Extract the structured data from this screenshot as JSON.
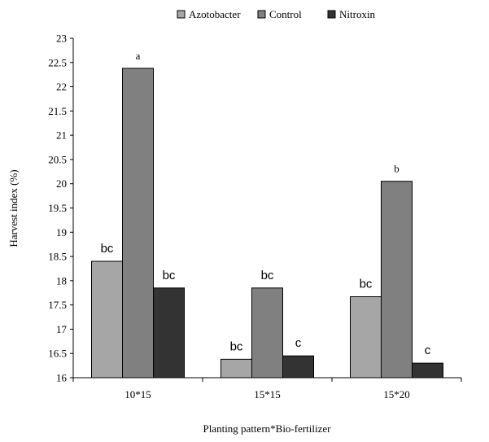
{
  "chart_data": {
    "type": "bar",
    "title": "",
    "xlabel": "Planting pattern*Bio-fertilizer",
    "ylabel": "Harvest index (%)",
    "ylim": [
      16,
      23
    ],
    "yticks": [
      "16",
      "16.5",
      "17",
      "17.5",
      "18",
      "18.5",
      "19",
      "19.5",
      "20",
      "20.5",
      "21",
      "21.5",
      "22",
      "22.5",
      "23"
    ],
    "categories": [
      "10*15",
      "15*15",
      "15*20"
    ],
    "legend_position": "top",
    "grid": false,
    "series": [
      {
        "name": "Azotobacter",
        "color": "#a6a6a6",
        "values": [
          18.4,
          16.38,
          17.67
        ],
        "labels": [
          "bc",
          "bc",
          "bc"
        ]
      },
      {
        "name": "Control",
        "color": "#808080",
        "values": [
          22.38,
          17.85,
          20.05
        ],
        "labels": [
          "a",
          "bc",
          "b"
        ]
      },
      {
        "name": "Nitroxin",
        "color": "#333333",
        "values": [
          17.85,
          16.45,
          16.3
        ],
        "labels": [
          "bc",
          "c",
          "c"
        ]
      }
    ]
  }
}
